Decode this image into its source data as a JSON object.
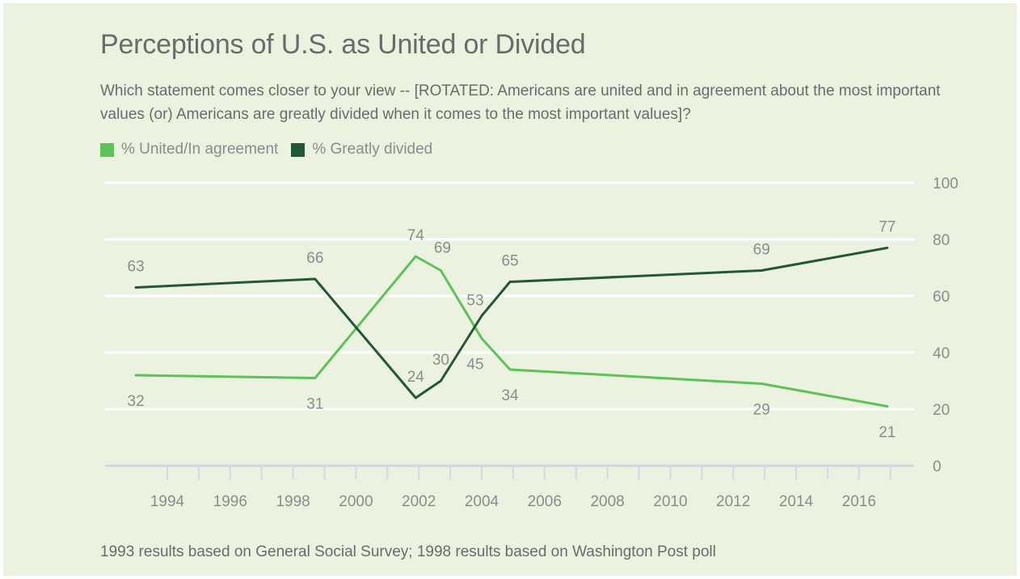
{
  "header": {
    "title": "Perceptions of U.S. as United or Divided",
    "subtitle": "Which statement comes closer to your view -- [ROTATED: Americans are united and in agreement about the most important values (or) Americans are greatly divided when it comes to the most important values]?"
  },
  "footnote": "1993 results based on General Social Survey; 1998 results based on Washington Post poll",
  "colors": {
    "united": "#5cc455",
    "divided": "#22573a",
    "background": "#ebf2df",
    "grid": "#ffffff",
    "axis": "#d2d9e6",
    "label": "#8c8c8c"
  },
  "chart_data": {
    "type": "line",
    "x_ticks": [
      1994,
      1996,
      1998,
      2000,
      2002,
      2004,
      2006,
      2008,
      2010,
      2012,
      2014,
      2016
    ],
    "y_ticks": [
      0,
      20,
      40,
      60,
      80,
      100
    ],
    "ylim": [
      0,
      100
    ],
    "xlim": [
      1992,
      2018
    ],
    "grid": true,
    "y_axis_side": "right",
    "legend_position": "top-left",
    "series": [
      {
        "name": "% United/In agreement",
        "color_key": "united",
        "points": [
          {
            "x": 1993,
            "y": 32,
            "label": "32",
            "lpos": "below"
          },
          {
            "x": 1998.7,
            "y": 31,
            "label": "31",
            "lpos": "below"
          },
          {
            "x": 2001.9,
            "y": 74,
            "label": "74",
            "lpos": "above"
          },
          {
            "x": 2002.7,
            "y": 69,
            "label": "69",
            "lpos": "above-right"
          },
          {
            "x": 2004,
            "y": 45,
            "label": "45",
            "lpos": "below-left"
          },
          {
            "x": 2004.9,
            "y": 34,
            "label": "34",
            "lpos": "below"
          },
          {
            "x": 2012.9,
            "y": 29,
            "label": "29",
            "lpos": "below"
          },
          {
            "x": 2016.9,
            "y": 21,
            "label": "21",
            "lpos": "below"
          }
        ]
      },
      {
        "name": "% Greatly divided",
        "color_key": "divided",
        "points": [
          {
            "x": 1993,
            "y": 63,
            "label": "63",
            "lpos": "above"
          },
          {
            "x": 1998.7,
            "y": 66,
            "label": "66",
            "lpos": "above"
          },
          {
            "x": 2001.9,
            "y": 24,
            "label": "24",
            "lpos": "above"
          },
          {
            "x": 2002.7,
            "y": 30,
            "label": "30",
            "lpos": "above"
          },
          {
            "x": 2004,
            "y": 53,
            "label": "53",
            "lpos": "above-left"
          },
          {
            "x": 2004.9,
            "y": 65,
            "label": "65",
            "lpos": "above"
          },
          {
            "x": 2012.9,
            "y": 69,
            "label": "69",
            "lpos": "above"
          },
          {
            "x": 2016.9,
            "y": 77,
            "label": "77",
            "lpos": "above"
          }
        ]
      }
    ]
  }
}
